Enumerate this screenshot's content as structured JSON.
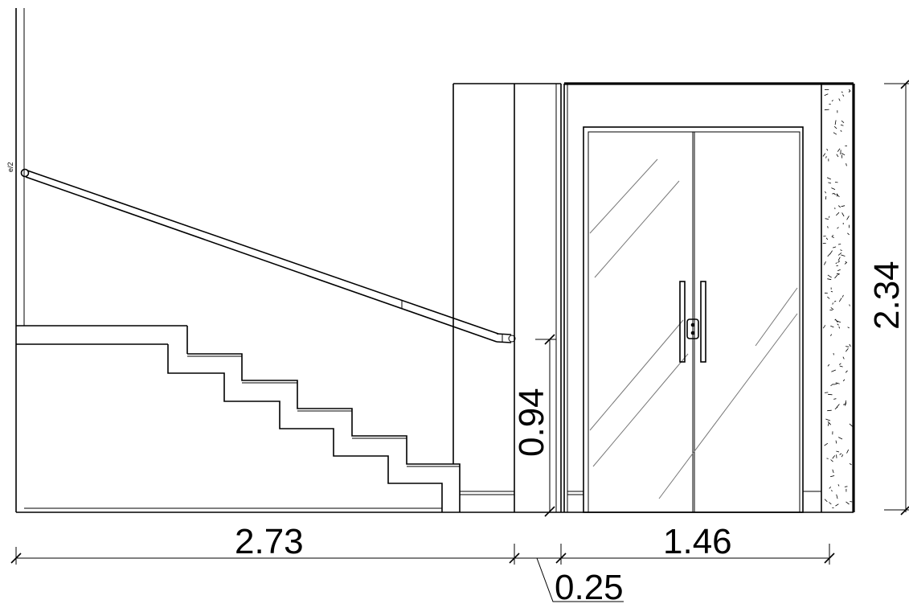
{
  "dimensions": {
    "stair_width": "2.73",
    "door_width": "1.46",
    "gap": "0.25",
    "handrail_height": "0.94",
    "door_height": "2.34"
  },
  "handrail_label": "e/2"
}
